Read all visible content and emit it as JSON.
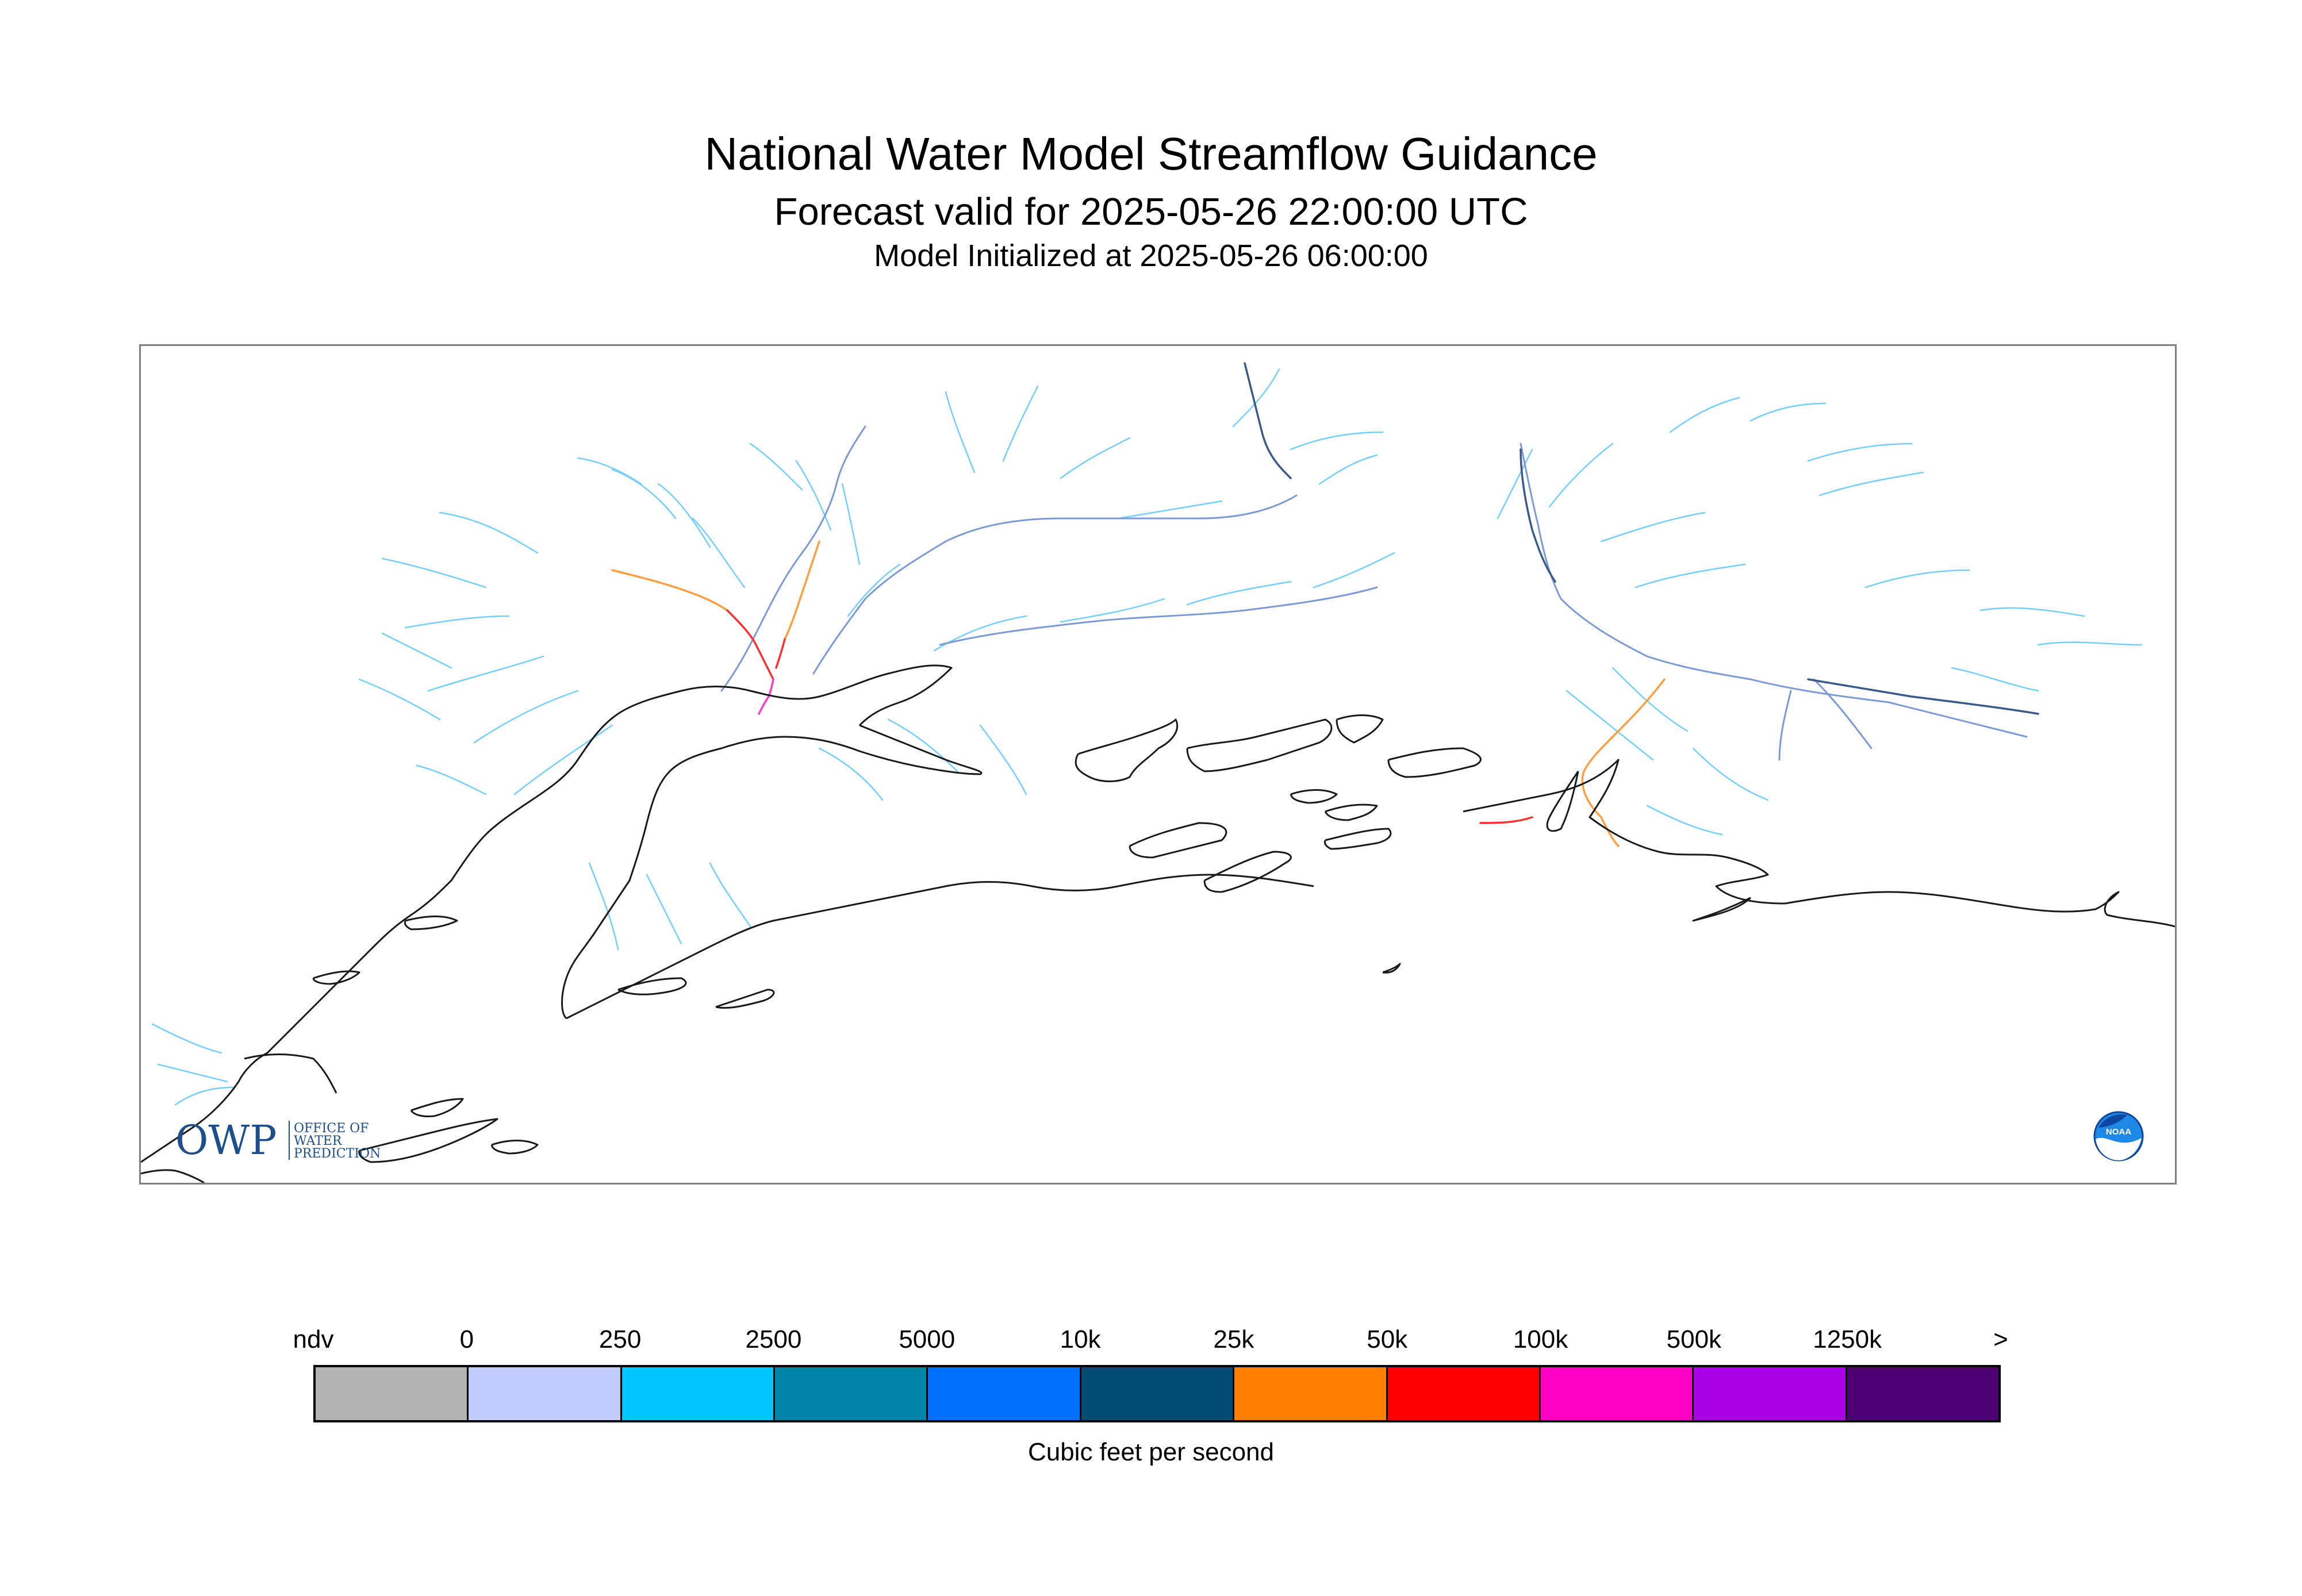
{
  "header": {
    "title": "National Water Model Streamflow Guidance",
    "subtitle": "Forecast valid for 2025-05-26 22:00:00 UTC",
    "init": "Model Initialized at 2025-05-26 06:00:00"
  },
  "logos": {
    "owp_mark": "OWP",
    "owp_text": [
      "OFFICE OF",
      "WATER",
      "PREDICTION"
    ],
    "noaa_text": "NOAA"
  },
  "legend": {
    "labels": [
      "ndv",
      "0",
      "250",
      "2500",
      "5000",
      "10k",
      "25k",
      "50k",
      "100k",
      "500k",
      "1250k",
      ">"
    ],
    "colors": [
      "#b3b3b3",
      "#c2ccff",
      "#00c5ff",
      "#0084a8",
      "#0070ff",
      "#004c73",
      "#ff7f00",
      "#ff0000",
      "#ff00c5",
      "#a900e6",
      "#4c0073"
    ],
    "units": "Cubic feet per second"
  },
  "colors": {
    "coastline": "#1a1a1a",
    "stream_light": "#74cfff",
    "stream_mid": "#7c9bd6",
    "stream_dark": "#3a5a8a",
    "stream_orange": "#ff9f40",
    "stream_red": "#ff3030",
    "stream_magenta": "#ff3ccf"
  }
}
